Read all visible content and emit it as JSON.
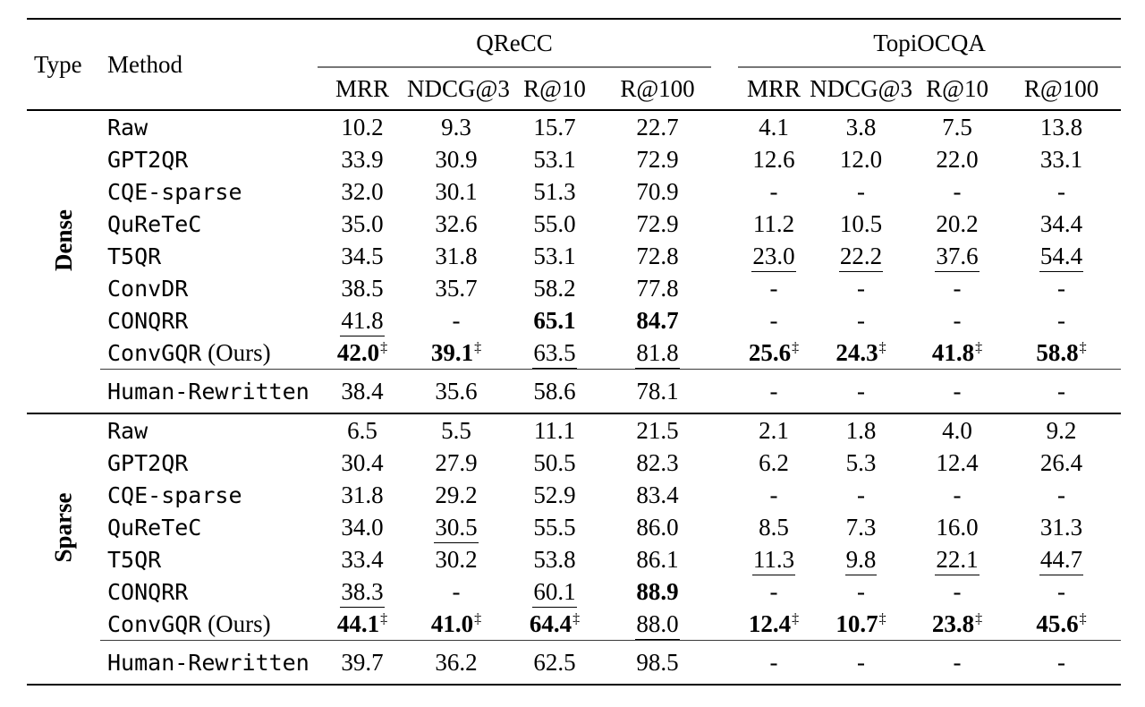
{
  "table": {
    "dagger": "‡",
    "headers": {
      "type": "Type",
      "method": "Method"
    },
    "groups": [
      {
        "label": "QReCC",
        "metrics": [
          "MRR",
          "NDCG@3",
          "R@10",
          "R@100"
        ]
      },
      {
        "label": "TopiOCQA",
        "metrics": [
          "MRR",
          "NDCG@3",
          "R@10",
          "R@100"
        ]
      }
    ],
    "sections": [
      {
        "type_label": "Dense",
        "rows": [
          {
            "method": "Raw",
            "suffix": "",
            "cells": [
              {
                "v": "10.2"
              },
              {
                "v": "9.3"
              },
              {
                "v": "15.7"
              },
              {
                "v": "22.7"
              },
              {
                "v": "4.1"
              },
              {
                "v": "3.8"
              },
              {
                "v": "7.5"
              },
              {
                "v": "13.8"
              }
            ]
          },
          {
            "method": "GPT2QR",
            "suffix": "",
            "cells": [
              {
                "v": "33.9"
              },
              {
                "v": "30.9"
              },
              {
                "v": "53.1"
              },
              {
                "v": "72.9"
              },
              {
                "v": "12.6"
              },
              {
                "v": "12.0"
              },
              {
                "v": "22.0"
              },
              {
                "v": "33.1"
              }
            ]
          },
          {
            "method": "CQE-sparse",
            "suffix": "",
            "cells": [
              {
                "v": "32.0"
              },
              {
                "v": "30.1"
              },
              {
                "v": "51.3"
              },
              {
                "v": "70.9"
              },
              {
                "v": "-"
              },
              {
                "v": "-"
              },
              {
                "v": "-"
              },
              {
                "v": "-"
              }
            ]
          },
          {
            "method": "QuReTeC",
            "suffix": "",
            "cells": [
              {
                "v": "35.0"
              },
              {
                "v": "32.6"
              },
              {
                "v": "55.0"
              },
              {
                "v": "72.9"
              },
              {
                "v": "11.2"
              },
              {
                "v": "10.5"
              },
              {
                "v": "20.2"
              },
              {
                "v": "34.4"
              }
            ]
          },
          {
            "method": "T5QR",
            "suffix": "",
            "cells": [
              {
                "v": "34.5"
              },
              {
                "v": "31.8"
              },
              {
                "v": "53.1"
              },
              {
                "v": "72.8"
              },
              {
                "v": "23.0",
                "u": true
              },
              {
                "v": "22.2",
                "u": true
              },
              {
                "v": "37.6",
                "u": true
              },
              {
                "v": "54.4",
                "u": true
              }
            ]
          },
          {
            "method": "ConvDR",
            "suffix": "",
            "cells": [
              {
                "v": "38.5"
              },
              {
                "v": "35.7"
              },
              {
                "v": "58.2"
              },
              {
                "v": "77.8"
              },
              {
                "v": "-"
              },
              {
                "v": "-"
              },
              {
                "v": "-"
              },
              {
                "v": "-"
              }
            ]
          },
          {
            "method": "CONQRR",
            "suffix": "",
            "cells": [
              {
                "v": "41.8",
                "u": true
              },
              {
                "v": "-"
              },
              {
                "v": "65.1",
                "b": true
              },
              {
                "v": "84.7",
                "b": true
              },
              {
                "v": "-"
              },
              {
                "v": "-"
              },
              {
                "v": "-"
              },
              {
                "v": "-"
              }
            ]
          },
          {
            "method": "ConvGQR",
            "suffix": "(Ours)",
            "cells": [
              {
                "v": "42.0",
                "b": true,
                "d": true
              },
              {
                "v": "39.1",
                "b": true,
                "d": true
              },
              {
                "v": "63.5",
                "u": true
              },
              {
                "v": "81.8",
                "u": true
              },
              {
                "v": "25.6",
                "b": true,
                "d": true
              },
              {
                "v": "24.3",
                "b": true,
                "d": true
              },
              {
                "v": "41.8",
                "b": true,
                "d": true
              },
              {
                "v": "58.8",
                "b": true,
                "d": true
              }
            ]
          }
        ],
        "footer_row": {
          "method": "Human-Rewritten",
          "suffix": "",
          "cells": [
            {
              "v": "38.4"
            },
            {
              "v": "35.6"
            },
            {
              "v": "58.6"
            },
            {
              "v": "78.1"
            },
            {
              "v": "-"
            },
            {
              "v": "-"
            },
            {
              "v": "-"
            },
            {
              "v": "-"
            }
          ]
        }
      },
      {
        "type_label": "Sparse",
        "rows": [
          {
            "method": "Raw",
            "suffix": "",
            "cells": [
              {
                "v": "6.5"
              },
              {
                "v": "5.5"
              },
              {
                "v": "11.1"
              },
              {
                "v": "21.5"
              },
              {
                "v": "2.1"
              },
              {
                "v": "1.8"
              },
              {
                "v": "4.0"
              },
              {
                "v": "9.2"
              }
            ]
          },
          {
            "method": "GPT2QR",
            "suffix": "",
            "cells": [
              {
                "v": "30.4"
              },
              {
                "v": "27.9"
              },
              {
                "v": "50.5"
              },
              {
                "v": "82.3"
              },
              {
                "v": "6.2"
              },
              {
                "v": "5.3"
              },
              {
                "v": "12.4"
              },
              {
                "v": "26.4"
              }
            ]
          },
          {
            "method": "CQE-sparse",
            "suffix": "",
            "cells": [
              {
                "v": "31.8"
              },
              {
                "v": "29.2"
              },
              {
                "v": "52.9"
              },
              {
                "v": "83.4"
              },
              {
                "v": "-"
              },
              {
                "v": "-"
              },
              {
                "v": "-"
              },
              {
                "v": "-"
              }
            ]
          },
          {
            "method": "QuReTeC",
            "suffix": "",
            "cells": [
              {
                "v": "34.0"
              },
              {
                "v": "30.5",
                "u": true
              },
              {
                "v": "55.5"
              },
              {
                "v": "86.0"
              },
              {
                "v": "8.5"
              },
              {
                "v": "7.3"
              },
              {
                "v": "16.0"
              },
              {
                "v": "31.3"
              }
            ]
          },
          {
            "method": "T5QR",
            "suffix": "",
            "cells": [
              {
                "v": "33.4"
              },
              {
                "v": "30.2"
              },
              {
                "v": "53.8"
              },
              {
                "v": "86.1"
              },
              {
                "v": "11.3",
                "u": true
              },
              {
                "v": "9.8",
                "u": true
              },
              {
                "v": "22.1",
                "u": true
              },
              {
                "v": "44.7",
                "u": true
              }
            ]
          },
          {
            "method": "CONQRR",
            "suffix": "",
            "cells": [
              {
                "v": "38.3",
                "u": true
              },
              {
                "v": "-"
              },
              {
                "v": "60.1",
                "u": true
              },
              {
                "v": "88.9",
                "b": true
              },
              {
                "v": "-"
              },
              {
                "v": "-"
              },
              {
                "v": "-"
              },
              {
                "v": "-"
              }
            ]
          },
          {
            "method": "ConvGQR",
            "suffix": "(Ours)",
            "cells": [
              {
                "v": "44.1",
                "b": true,
                "d": true
              },
              {
                "v": "41.0",
                "b": true,
                "d": true
              },
              {
                "v": "64.4",
                "b": true,
                "d": true
              },
              {
                "v": "88.0",
                "u": true
              },
              {
                "v": "12.4",
                "b": true,
                "d": true
              },
              {
                "v": "10.7",
                "b": true,
                "d": true
              },
              {
                "v": "23.8",
                "b": true,
                "d": true
              },
              {
                "v": "45.6",
                "b": true,
                "d": true
              }
            ]
          }
        ],
        "footer_row": {
          "method": "Human-Rewritten",
          "suffix": "",
          "cells": [
            {
              "v": "39.7"
            },
            {
              "v": "36.2"
            },
            {
              "v": "62.5"
            },
            {
              "v": "98.5"
            },
            {
              "v": "-"
            },
            {
              "v": "-"
            },
            {
              "v": "-"
            },
            {
              "v": "-"
            }
          ]
        }
      }
    ]
  }
}
